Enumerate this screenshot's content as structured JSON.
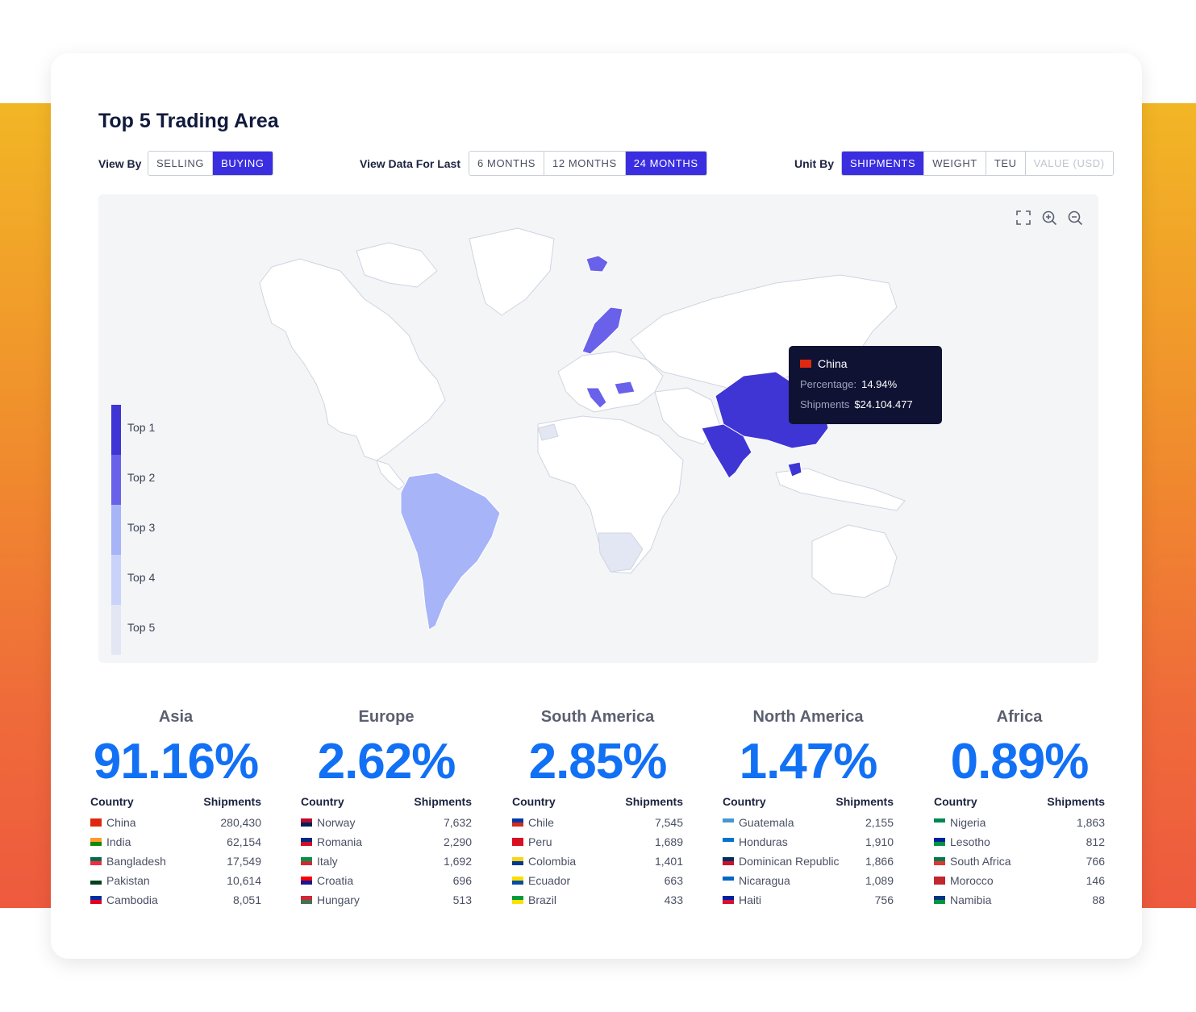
{
  "title": "Top 5 Trading Area",
  "view_by": {
    "label": "View By",
    "options": [
      "SELLING",
      "BUYING"
    ],
    "active": 1
  },
  "view_data": {
    "label": "View Data For Last",
    "options": [
      "6 MONTHS",
      "12 MONTHS",
      "24 MONTHS"
    ],
    "active": 2
  },
  "unit_by": {
    "label": "Unit By",
    "options": [
      "SHIPMENTS",
      "WEIGHT",
      "TEU",
      "VALUE (USD)"
    ],
    "active": 0,
    "disabled": [
      3
    ]
  },
  "map": {
    "tools": [
      "fullscreen-icon",
      "zoom-in-icon",
      "zoom-out-icon"
    ],
    "legend": [
      {
        "label": "Top 1",
        "color": "#3f35d4"
      },
      {
        "label": "Top 2",
        "color": "#6a61ea"
      },
      {
        "label": "Top 3",
        "color": "#a7b4f7"
      },
      {
        "label": "Top 4",
        "color": "#c9d3fa"
      },
      {
        "label": "Top 5",
        "color": "#e3e7f3"
      }
    ],
    "tooltip": {
      "country": "China",
      "percentage_label": "Percentage:",
      "percentage_value": "14.94%",
      "shipments_label": "Shipments",
      "shipments_value": "$24.104.477"
    }
  },
  "regions": [
    {
      "name": "Asia",
      "pct": "91.16%",
      "col_country": "Country",
      "col_shipments": "Shipments",
      "rows": [
        {
          "country": "China",
          "value": "280,430",
          "flag": [
            "#de2910",
            "#de2910"
          ]
        },
        {
          "country": "India",
          "value": "62,154",
          "flag": [
            "#ff9933",
            "#138808"
          ]
        },
        {
          "country": "Bangladesh",
          "value": "17,549",
          "flag": [
            "#006a4e",
            "#f42a41"
          ]
        },
        {
          "country": "Pakistan",
          "value": "10,614",
          "flag": [
            "#ffffff",
            "#01411c"
          ]
        },
        {
          "country": "Cambodia",
          "value": "8,051",
          "flag": [
            "#032ea1",
            "#e00025"
          ]
        }
      ]
    },
    {
      "name": "Europe",
      "pct": "2.62%",
      "col_country": "Country",
      "col_shipments": "Shipments",
      "rows": [
        {
          "country": "Norway",
          "value": "7,632",
          "flag": [
            "#ba0c2f",
            "#00205b"
          ]
        },
        {
          "country": "Romania",
          "value": "2,290",
          "flag": [
            "#002b7f",
            "#ce1126"
          ]
        },
        {
          "country": "Italy",
          "value": "1,692",
          "flag": [
            "#009246",
            "#ce2b37"
          ]
        },
        {
          "country": "Croatia",
          "value": "696",
          "flag": [
            "#ff0000",
            "#171796"
          ]
        },
        {
          "country": "Hungary",
          "value": "513",
          "flag": [
            "#ce2939",
            "#477050"
          ]
        }
      ]
    },
    {
      "name": "South America",
      "pct": "2.85%",
      "col_country": "Country",
      "col_shipments": "Shipments",
      "rows": [
        {
          "country": "Chile",
          "value": "7,545",
          "flag": [
            "#0039a6",
            "#d52b1e"
          ]
        },
        {
          "country": "Peru",
          "value": "1,689",
          "flag": [
            "#d91023",
            "#d91023"
          ]
        },
        {
          "country": "Colombia",
          "value": "1,401",
          "flag": [
            "#fcd116",
            "#003893"
          ]
        },
        {
          "country": "Ecuador",
          "value": "663",
          "flag": [
            "#ffdd00",
            "#034ea2"
          ]
        },
        {
          "country": "Brazil",
          "value": "433",
          "flag": [
            "#009c3b",
            "#ffdf00"
          ]
        }
      ]
    },
    {
      "name": "North America",
      "pct": "1.47%",
      "col_country": "Country",
      "col_shipments": "Shipments",
      "rows": [
        {
          "country": "Guatemala",
          "value": "2,155",
          "flag": [
            "#4997d0",
            "#ffffff"
          ]
        },
        {
          "country": "Honduras",
          "value": "1,910",
          "flag": [
            "#0073cf",
            "#ffffff"
          ]
        },
        {
          "country": "Dominican Republic",
          "value": "1,866",
          "flag": [
            "#002d62",
            "#ce1126"
          ]
        },
        {
          "country": "Nicaragua",
          "value": "1,089",
          "flag": [
            "#0067c6",
            "#ffffff"
          ]
        },
        {
          "country": "Haiti",
          "value": "756",
          "flag": [
            "#00209f",
            "#d21034"
          ]
        }
      ]
    },
    {
      "name": "Africa",
      "pct": "0.89%",
      "col_country": "Country",
      "col_shipments": "Shipments",
      "rows": [
        {
          "country": "Nigeria",
          "value": "1,863",
          "flag": [
            "#008751",
            "#ffffff"
          ]
        },
        {
          "country": "Lesotho",
          "value": "812",
          "flag": [
            "#00209f",
            "#009543"
          ]
        },
        {
          "country": "South Africa",
          "value": "766",
          "flag": [
            "#007a4d",
            "#de3831"
          ]
        },
        {
          "country": "Morocco",
          "value": "146",
          "flag": [
            "#c1272d",
            "#c1272d"
          ]
        },
        {
          "country": "Namibia",
          "value": "88",
          "flag": [
            "#003580",
            "#009543"
          ]
        }
      ]
    }
  ]
}
